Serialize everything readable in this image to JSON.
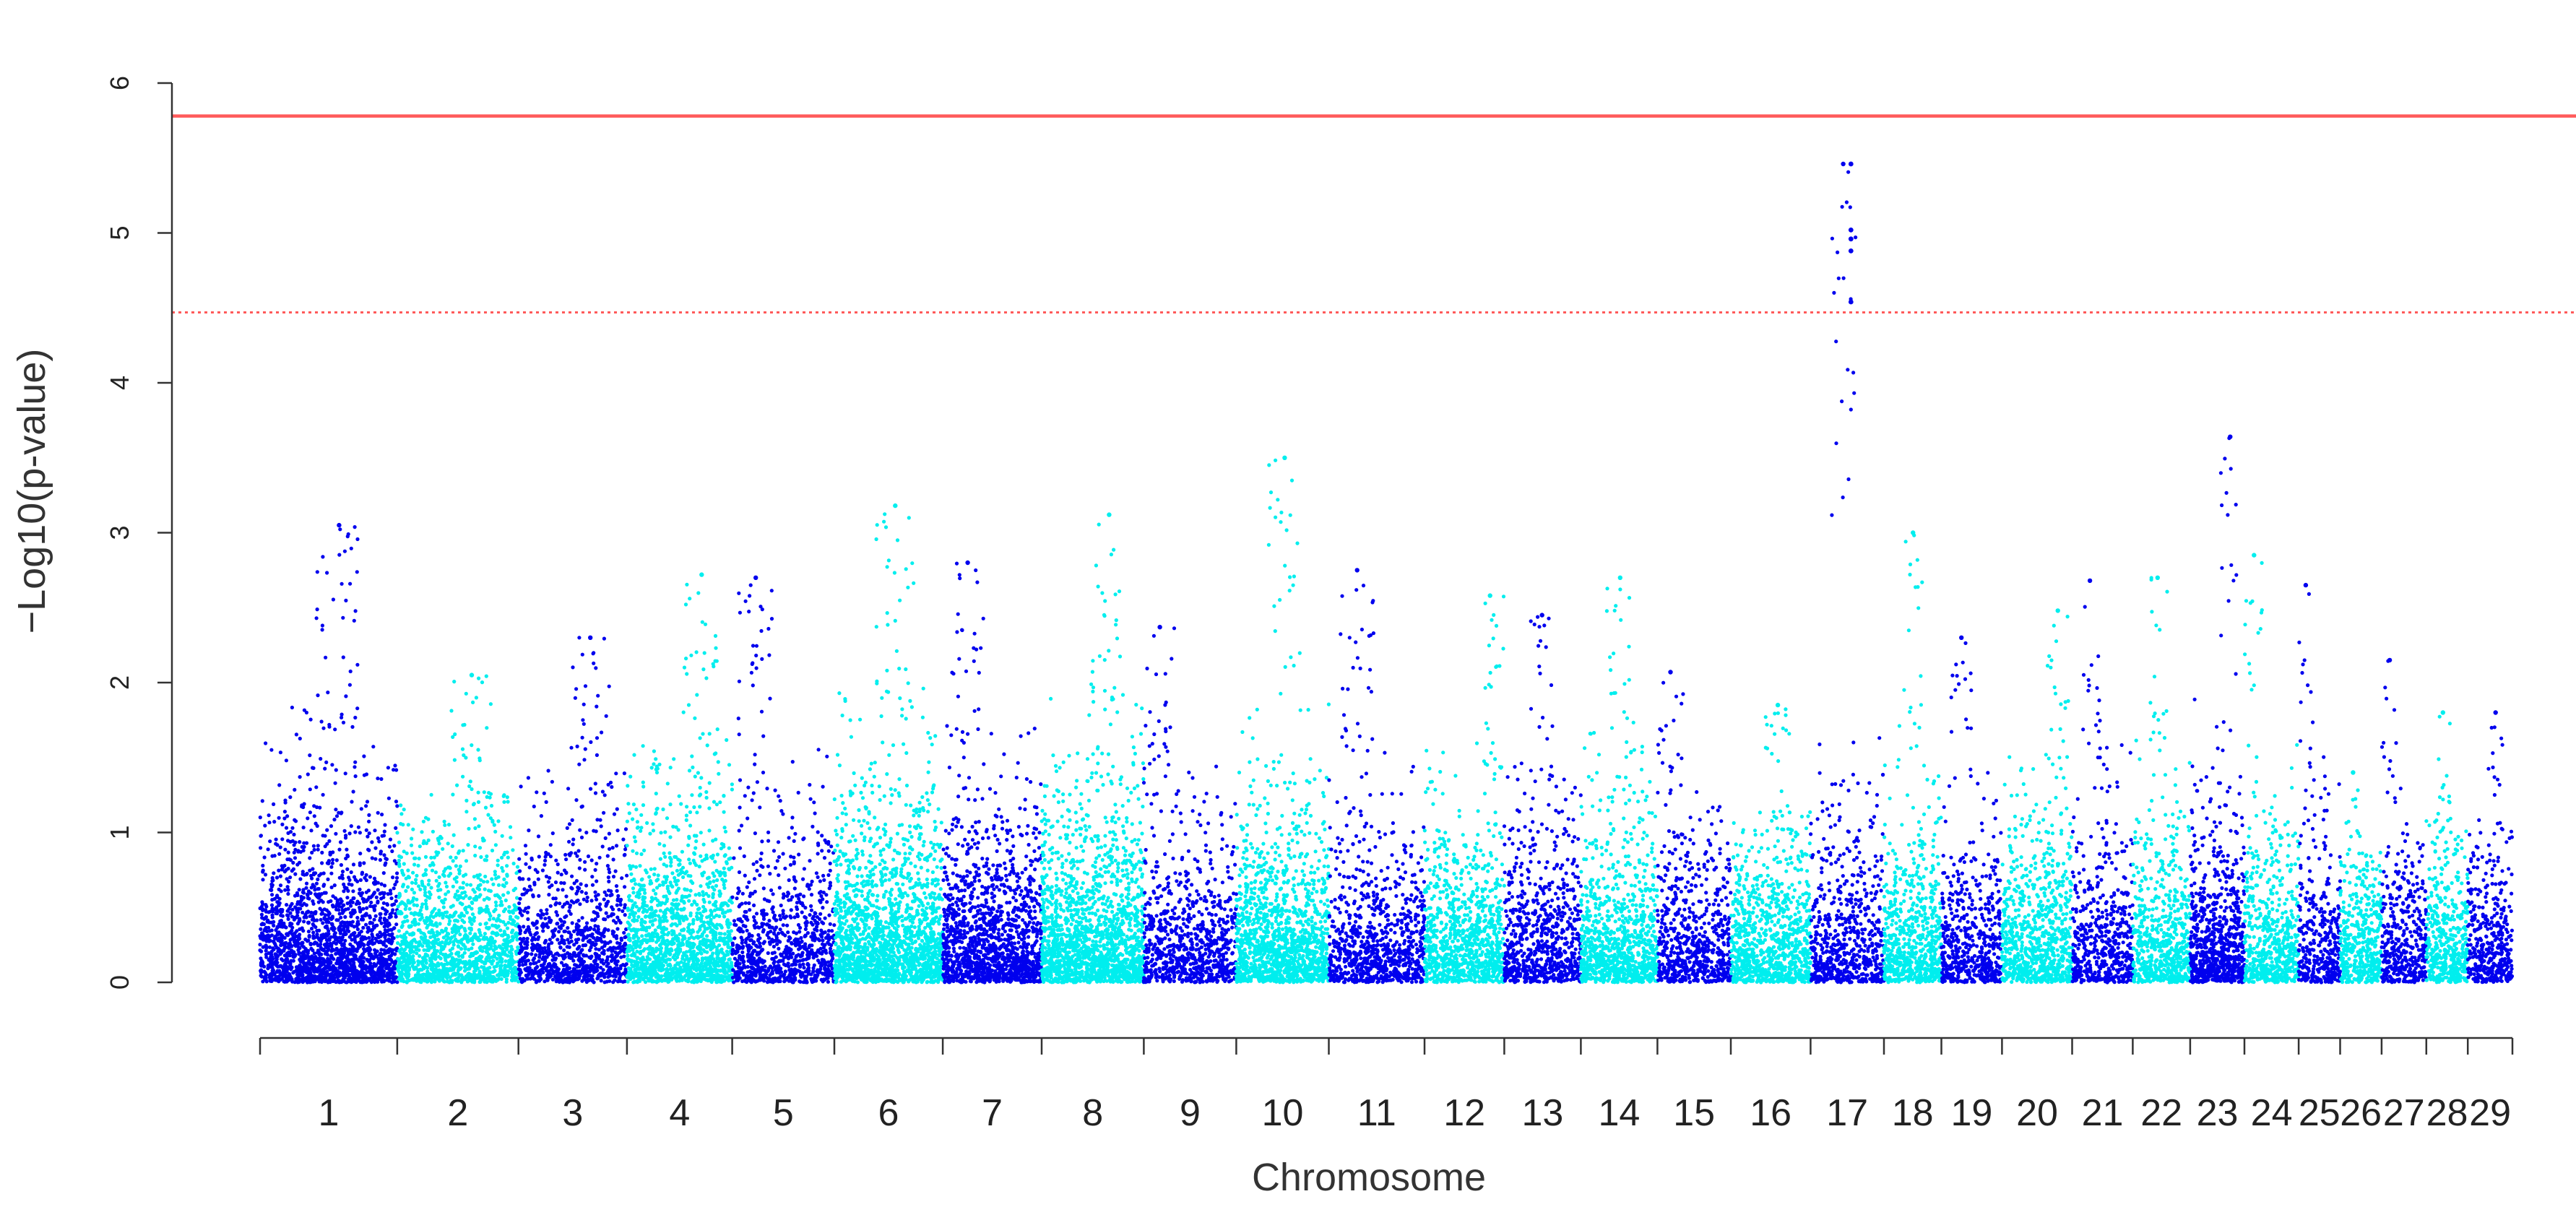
{
  "chart_data": {
    "type": "scatter",
    "plot_kind": "manhattan",
    "xlabel": "Chromosome",
    "ylabel": "−Log10(p-value)",
    "ylim": [
      0,
      6.3
    ],
    "yticks": [
      0,
      1,
      2,
      3,
      4,
      5,
      6
    ],
    "grid": false,
    "colors": {
      "odd": "#0000ee",
      "even": "#00eeee",
      "significance_line": "#ff5a5a"
    },
    "thresholds": [
      {
        "value": 5.78,
        "style": "solid"
      },
      {
        "value": 4.47,
        "style": "dotted"
      }
    ],
    "chromosomes": [
      {
        "label": "1",
        "width": 43,
        "peak": 3.05,
        "density": 1.6
      },
      {
        "label": "2",
        "width": 38,
        "peak": 2.05,
        "density": 1.3
      },
      {
        "label": "3",
        "width": 34,
        "peak": 2.3,
        "density": 1.0
      },
      {
        "label": "4",
        "width": 33,
        "peak": 2.72,
        "density": 1.6
      },
      {
        "label": "5",
        "width": 32,
        "peak": 2.7,
        "density": 1.0
      },
      {
        "label": "6",
        "width": 34,
        "peak": 3.18,
        "density": 1.9
      },
      {
        "label": "7",
        "width": 31,
        "peak": 2.8,
        "density": 1.6
      },
      {
        "label": "8",
        "width": 32,
        "peak": 3.12,
        "density": 1.9
      },
      {
        "label": "9",
        "width": 29,
        "peak": 2.37,
        "density": 1.0
      },
      {
        "label": "10",
        "width": 29,
        "peak": 3.5,
        "density": 1.6
      },
      {
        "label": "11",
        "width": 30,
        "peak": 2.75,
        "density": 1.0
      },
      {
        "label": "12",
        "width": 25,
        "peak": 2.58,
        "density": 1.3
      },
      {
        "label": "13",
        "width": 24,
        "peak": 2.45,
        "density": 1.1
      },
      {
        "label": "14",
        "width": 24,
        "peak": 2.7,
        "density": 1.4
      },
      {
        "label": "15",
        "width": 23,
        "peak": 2.07,
        "density": 1.0
      },
      {
        "label": "16",
        "width": 25,
        "peak": 1.85,
        "density": 1.3
      },
      {
        "label": "17",
        "width": 23,
        "peak": 5.46,
        "density": 1.0,
        "hits": [
          5.46,
          5.02,
          4.96,
          4.88,
          4.54
        ]
      },
      {
        "label": "18",
        "width": 18,
        "peak": 3.0,
        "density": 1.3
      },
      {
        "label": "19",
        "width": 19,
        "peak": 2.3,
        "density": 1.0
      },
      {
        "label": "20",
        "width": 22,
        "peak": 2.48,
        "density": 1.3
      },
      {
        "label": "21",
        "width": 19,
        "peak": 2.68,
        "density": 1.0
      },
      {
        "label": "22",
        "width": 18,
        "peak": 2.7,
        "density": 1.2
      },
      {
        "label": "23",
        "width": 17,
        "peak": 3.64,
        "density": 1.6
      },
      {
        "label": "24",
        "width": 17,
        "peak": 2.85,
        "density": 1.2
      },
      {
        "label": "25",
        "width": 13,
        "peak": 2.65,
        "density": 1.0
      },
      {
        "label": "26",
        "width": 13,
        "peak": 1.4,
        "density": 1.2
      },
      {
        "label": "27",
        "width": 14,
        "peak": 2.15,
        "density": 1.0
      },
      {
        "label": "28",
        "width": 13,
        "peak": 1.8,
        "density": 1.2
      },
      {
        "label": "29",
        "width": 14,
        "peak": 1.8,
        "density": 1.0
      }
    ]
  }
}
